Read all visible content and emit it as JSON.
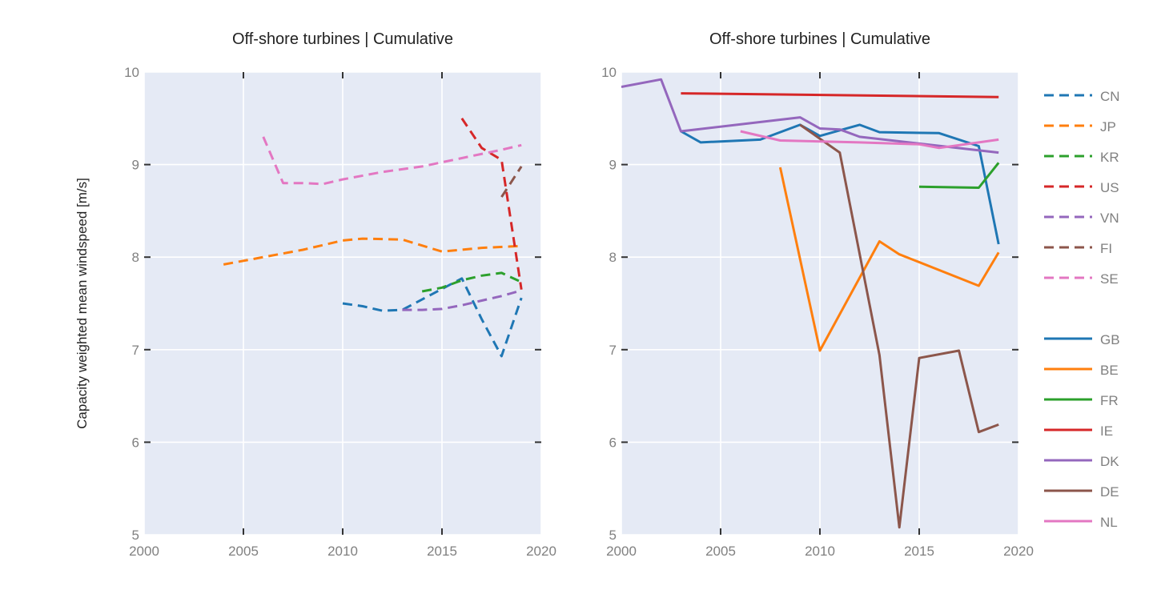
{
  "ylabel": "Capacity weighted mean windspeed [m/s]",
  "chart_data": [
    {
      "type": "line",
      "title": "Off-shore turbines | Cumulative",
      "xlim": [
        2000,
        2020
      ],
      "ylim": [
        5,
        10
      ],
      "xticks": [
        2000,
        2005,
        2010,
        2015,
        2020
      ],
      "yticks": [
        5,
        6,
        7,
        8,
        9,
        10
      ],
      "background": "#e5eaf5",
      "grid": true,
      "series": [
        {
          "name": "CN",
          "color": "#1f77b4",
          "dash": true,
          "x": [
            2010,
            2011,
            2012,
            2013,
            2016,
            2017,
            2018,
            2019
          ],
          "y": [
            7.5,
            7.47,
            7.42,
            7.43,
            7.77,
            7.33,
            6.93,
            7.56
          ]
        },
        {
          "name": "JP",
          "color": "#ff7f0e",
          "dash": true,
          "x": [
            2004,
            2006,
            2008,
            2010,
            2011,
            2013,
            2015,
            2017,
            2019
          ],
          "y": [
            7.92,
            8.0,
            8.08,
            8.18,
            8.2,
            8.19,
            8.06,
            8.1,
            8.12
          ]
        },
        {
          "name": "KR",
          "color": "#2ca02c",
          "dash": true,
          "x": [
            2014,
            2015,
            2016,
            2017,
            2018,
            2019
          ],
          "y": [
            7.63,
            7.67,
            7.75,
            7.8,
            7.83,
            7.73
          ]
        },
        {
          "name": "US",
          "color": "#d62728",
          "dash": true,
          "x": [
            2016,
            2017,
            2018,
            2019
          ],
          "y": [
            9.5,
            9.18,
            9.05,
            7.65
          ]
        },
        {
          "name": "VN",
          "color": "#9467bd",
          "dash": true,
          "x": [
            2013,
            2014,
            2015,
            2016,
            2017,
            2018,
            2019
          ],
          "y": [
            7.43,
            7.43,
            7.44,
            7.48,
            7.53,
            7.58,
            7.64
          ]
        },
        {
          "name": "FI",
          "color": "#8c564b",
          "dash": true,
          "x": [
            2018,
            2019
          ],
          "y": [
            8.65,
            8.98
          ]
        },
        {
          "name": "SE",
          "color": "#e377c2",
          "dash": true,
          "x": [
            2006,
            2007,
            2008,
            2009,
            2010,
            2012,
            2014,
            2016,
            2018,
            2019
          ],
          "y": [
            9.3,
            8.8,
            8.8,
            8.79,
            8.84,
            8.92,
            8.98,
            9.07,
            9.16,
            9.21
          ]
        }
      ]
    },
    {
      "type": "line",
      "title": "Off-shore turbines | Cumulative",
      "xlim": [
        2000,
        2020
      ],
      "ylim": [
        5,
        10
      ],
      "xticks": [
        2000,
        2005,
        2010,
        2015,
        2020
      ],
      "yticks": [
        5,
        6,
        7,
        8,
        9,
        10
      ],
      "background": "#e5eaf5",
      "grid": true,
      "legend_position": "right",
      "series": [
        {
          "name": "GB",
          "color": "#1f77b4",
          "dash": false,
          "x": [
            2003,
            2004,
            2005,
            2007,
            2009,
            2010,
            2011,
            2012,
            2013,
            2016,
            2018,
            2019
          ],
          "y": [
            9.36,
            9.24,
            9.25,
            9.27,
            9.43,
            9.31,
            9.37,
            9.43,
            9.35,
            9.34,
            9.2,
            8.14
          ]
        },
        {
          "name": "BE",
          "color": "#ff7f0e",
          "dash": false,
          "x": [
            2008,
            2010,
            2013,
            2014,
            2018,
            2019
          ],
          "y": [
            8.97,
            6.99,
            8.17,
            8.03,
            7.69,
            8.05
          ]
        },
        {
          "name": "FR",
          "color": "#2ca02c",
          "dash": false,
          "x": [
            2015,
            2018,
            2019
          ],
          "y": [
            8.76,
            8.75,
            9.02
          ]
        },
        {
          "name": "IE",
          "color": "#d62728",
          "dash": false,
          "x": [
            2003,
            2019
          ],
          "y": [
            9.77,
            9.73
          ]
        },
        {
          "name": "DK",
          "color": "#9467bd",
          "dash": false,
          "x": [
            2000,
            2002,
            2003,
            2009,
            2010,
            2011,
            2012,
            2019
          ],
          "y": [
            9.84,
            9.92,
            9.36,
            9.51,
            9.39,
            9.38,
            9.3,
            9.13
          ]
        },
        {
          "name": "DE",
          "color": "#8c564b",
          "dash": false,
          "x": [
            2009,
            2011,
            2013,
            2014,
            2015,
            2017,
            2018,
            2019
          ],
          "y": [
            9.43,
            9.13,
            6.94,
            5.08,
            6.91,
            6.99,
            6.11,
            6.19
          ]
        },
        {
          "name": "NL",
          "color": "#e377c2",
          "dash": false,
          "x": [
            2006,
            2008,
            2012,
            2015,
            2016,
            2018,
            2019
          ],
          "y": [
            9.36,
            9.26,
            9.24,
            9.22,
            9.18,
            9.24,
            9.27
          ]
        }
      ]
    }
  ]
}
